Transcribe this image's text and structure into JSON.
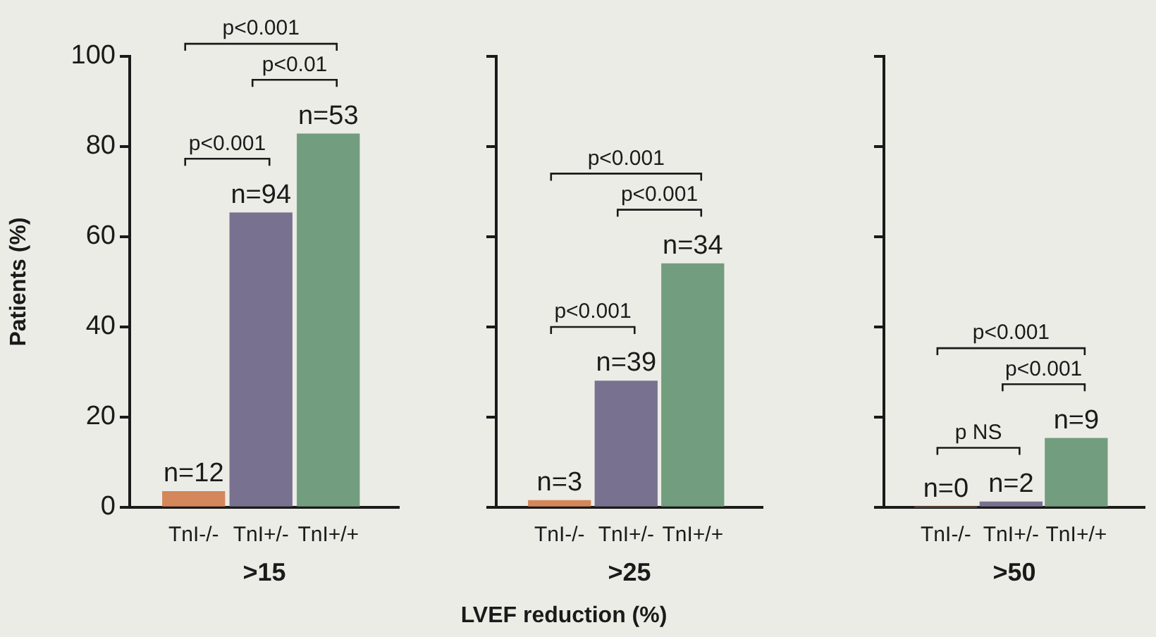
{
  "chart_data": [
    {
      "type": "bar",
      "xlabel": ">15",
      "ylabel": "Patients (%)",
      "categories": [
        "TnI-/-",
        "TnI+/-",
        "TnI+/+"
      ],
      "values": [
        3.5,
        65.3,
        82.8
      ],
      "colors": [
        "#d4875a",
        "#78718f",
        "#739d7f"
      ],
      "ylim": [
        0,
        100
      ],
      "yticks": [
        0,
        20,
        40,
        60,
        80,
        100
      ],
      "annotations": [
        {
          "text": "n=12",
          "x": "TnI-/-",
          "y": 3.5
        },
        {
          "text": "n=94",
          "x": "TnI+/-",
          "y": 65.3
        },
        {
          "text": "n=53",
          "x": "TnI+/+",
          "y": 82.8
        },
        "p<0.001",
        "p<0.01",
        "p<0.001"
      ]
    },
    {
      "type": "bar",
      "xlabel": ">25",
      "categories": [
        "TnI-/-",
        "TnI+/-",
        "TnI+/+"
      ],
      "values": [
        1.5,
        28,
        54
      ],
      "colors": [
        "#d4875a",
        "#78718f",
        "#739d7f"
      ],
      "ylim": [
        0,
        100
      ],
      "yticks": [
        0,
        20,
        40,
        60,
        80,
        100
      ],
      "tick_labels": "x",
      "annotations": [
        {
          "text": "n=3",
          "x": "TnI-/-",
          "y": 1.5
        },
        {
          "text": "n=39",
          "x": "TnI+/-",
          "y": 28
        },
        {
          "text": "n=34",
          "x": "TnI+/+",
          "y": 54
        },
        "p<0.001",
        "p<0.001",
        "p<0.001",
        "LVEF reduction (%)"
      ]
    },
    {
      "type": "bar",
      "xlabel": ">50",
      "categories": [
        "TnI-/-",
        "TnI+/-",
        "TnI+/+"
      ],
      "values": [
        0,
        1.2,
        15.3
      ],
      "colors": [
        "#d4875a",
        "#78718f",
        "#739d7f"
      ],
      "ylim": [
        0,
        100
      ],
      "yticks": [
        0,
        20,
        40,
        60,
        80,
        100
      ],
      "tick_labels": "x",
      "annotations": [
        {
          "text": "n=0",
          "x": "TnI-/-",
          "y": 0
        },
        {
          "text": "n=2",
          "x": "TnI+/-",
          "y": 1.2
        },
        {
          "text": "n=9",
          "x": "TnI+/+",
          "y": 15.3
        },
        "p NS",
        "p<0.001",
        "p<0.001"
      ]
    }
  ]
}
